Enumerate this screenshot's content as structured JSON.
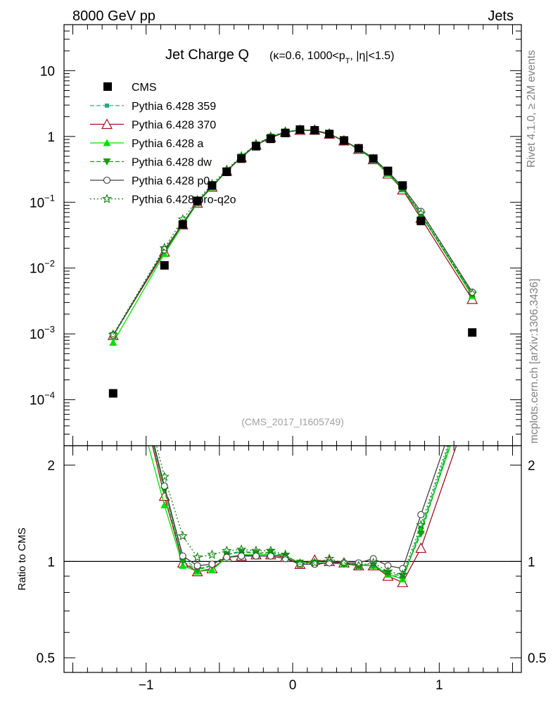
{
  "header": {
    "left": "8000 GeV pp",
    "right": "Jets"
  },
  "side_labels": {
    "rivet": "Rivet 4.1.0, ≥ 2M events",
    "mcplots": "mcplots.cern.ch [arXiv:1306.3436]"
  },
  "colors": {
    "cms": "#000000",
    "p359": "#20b080",
    "p370": "#a01020",
    "pa": "#00e000",
    "pdw": "#10a010",
    "pp0": "#404040",
    "pq2o": "#108010"
  },
  "chart_data": {
    "type": "line",
    "title": "Jet Charge Q",
    "title_sub": "(κ=0.6, 1000<p",
    "title_sub_T": "T",
    "title_sub_end": ", |η|<1.5)",
    "watermark": "(CMS_2017_I1605749)",
    "ratio_ylabel": "Ratio to CMS",
    "xlim": [
      -1.56,
      1.56
    ],
    "main_ylim": [
      2e-05,
      50
    ],
    "ratio_ylim": [
      0.45,
      2.3
    ],
    "x_ticks": [
      {
        "v": -1,
        "label": "−1"
      },
      {
        "v": 0,
        "label": "0"
      },
      {
        "v": 1,
        "label": "1"
      }
    ],
    "main_y_ticks": [
      {
        "v": 10,
        "label": "10"
      },
      {
        "v": 1,
        "label": "1"
      },
      {
        "v": 0.1,
        "label": "10",
        "exp": "−1"
      },
      {
        "v": 0.01,
        "label": "10",
        "exp": "−2"
      },
      {
        "v": 0.001,
        "label": "10",
        "exp": "−3"
      },
      {
        "v": 0.0001,
        "label": "10",
        "exp": "−4"
      }
    ],
    "ratio_y_ticks": [
      {
        "v": 2,
        "label": "2"
      },
      {
        "v": 1,
        "label": "1"
      },
      {
        "v": 0.5,
        "label": "0.5"
      }
    ],
    "x": [
      -1.225,
      -0.875,
      -0.75,
      -0.65,
      -0.55,
      -0.45,
      -0.35,
      -0.25,
      -0.15,
      -0.05,
      0.05,
      0.15,
      0.25,
      0.35,
      0.45,
      0.55,
      0.65,
      0.75,
      0.875,
      1.225
    ],
    "cms": [
      0.000125,
      0.011,
      0.046,
      0.105,
      0.18,
      0.29,
      0.46,
      0.71,
      0.92,
      1.13,
      1.27,
      1.24,
      1.09,
      0.87,
      0.66,
      0.46,
      0.3,
      0.18,
      0.052,
      0.00105
    ],
    "series": [
      {
        "name": "Pythia 6.428 359",
        "key": "p359",
        "style": "dashed",
        "marker": "square_small",
        "ratio": [
          7.4,
          1.68,
          1.02,
          0.95,
          0.97,
          1.05,
          1.08,
          1.06,
          1.06,
          1.04,
          0.99,
          0.99,
          0.99,
          0.99,
          0.98,
          0.98,
          0.91,
          0.89,
          1.27,
          3.8
        ]
      },
      {
        "name": "Pythia 6.428 370",
        "key": "p370",
        "style": "solid",
        "marker": "triangle_open",
        "ratio": [
          7.6,
          1.6,
          0.99,
          0.93,
          0.95,
          1.03,
          1.04,
          1.05,
          1.05,
          1.03,
          0.98,
          1.01,
          1.0,
          0.99,
          0.97,
          0.97,
          0.9,
          0.86,
          1.1,
          3.2
        ]
      },
      {
        "name": "Pythia 6.428 a",
        "key": "pa",
        "style": "solid",
        "marker": "triangle_filled",
        "ratio": [
          5.9,
          1.5,
          0.97,
          0.93,
          0.94,
          1.03,
          1.05,
          1.05,
          1.05,
          1.04,
          0.99,
          0.99,
          0.99,
          0.98,
          0.97,
          0.97,
          0.91,
          0.88,
          1.25,
          3.6
        ]
      },
      {
        "name": "Pythia 6.428 dw",
        "key": "pdw",
        "style": "dashed",
        "marker": "triangle_down",
        "ratio": [
          7.6,
          1.67,
          1.0,
          0.94,
          0.97,
          1.05,
          1.07,
          1.06,
          1.07,
          1.04,
          0.99,
          0.99,
          0.99,
          0.98,
          0.97,
          0.97,
          0.92,
          0.9,
          1.22,
          3.85
        ]
      },
      {
        "name": "Pythia 6.428 p0",
        "key": "pp0",
        "style": "solid",
        "marker": "circle_open",
        "ratio": [
          7.6,
          1.72,
          1.04,
          0.97,
          0.98,
          1.03,
          1.04,
          1.04,
          1.04,
          1.02,
          0.98,
          0.98,
          0.99,
          0.99,
          0.99,
          1.02,
          0.97,
          0.95,
          1.4,
          4.1
        ]
      },
      {
        "name": "Pythia 6.428 pro-q2o",
        "key": "pq2o",
        "style": "dotted",
        "marker": "star",
        "ratio": [
          7.8,
          1.84,
          1.2,
          1.03,
          1.05,
          1.08,
          1.09,
          1.08,
          1.08,
          1.05,
          0.98,
          0.99,
          1.02,
          0.99,
          0.97,
          0.99,
          0.93,
          0.91,
          1.3,
          3.9
        ]
      }
    ],
    "cms_legend": "CMS"
  }
}
